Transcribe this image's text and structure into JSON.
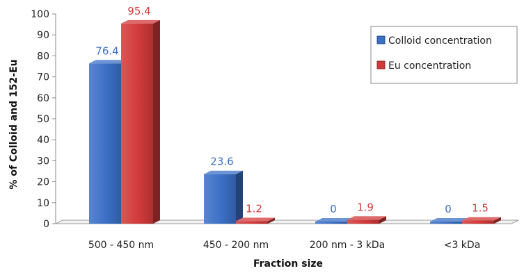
{
  "chart_data": {
    "type": "bar",
    "categories": [
      "500 - 450 nm",
      "450 - 200 nm",
      "200 nm - 3 kDa",
      "<3 kDa"
    ],
    "series": [
      {
        "name": "Colloid concentration",
        "values": [
          76.4,
          23.6,
          0,
          0
        ],
        "labels": [
          "76.4",
          "23.6",
          "0",
          "0"
        ],
        "color": "#3b6fc6"
      },
      {
        "name": "Eu concentration",
        "values": [
          95.4,
          1.2,
          1.9,
          1.5
        ],
        "labels": [
          "95.4",
          "1.2",
          "1.9",
          "1.5"
        ],
        "color": "#d23a3a"
      }
    ],
    "xlabel": "Fraction size",
    "ylabel": "% of Colloid and 152-Eu",
    "ylim": [
      0,
      100
    ],
    "yticks": [
      "0",
      "10",
      "20",
      "30",
      "40",
      "50",
      "60",
      "70",
      "80",
      "90",
      "100"
    ],
    "grid": false,
    "legend_position": "top-right",
    "style": "3d-bar"
  }
}
